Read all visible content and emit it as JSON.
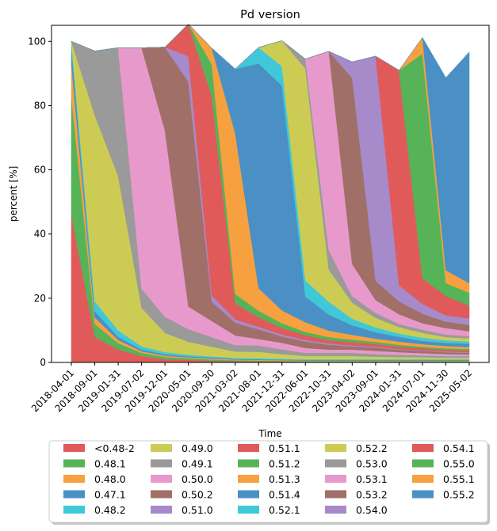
{
  "chart_data": {
    "type": "area",
    "stacked": true,
    "title": "Pd version",
    "xlabel": "Time",
    "ylabel": "percent [%]",
    "ylim": [
      0,
      105
    ],
    "yticks": [
      0,
      20,
      40,
      60,
      80,
      100
    ],
    "x_tick_labels": [
      "2018-04-01",
      "2018-09-01",
      "2019-01-31",
      "2019-07-02",
      "2019-12-01",
      "2020-05-01",
      "2020-09-30",
      "2021-03-02",
      "2021-08-01",
      "2021-12-31",
      "2022-06-01",
      "2022-10-31",
      "2023-04-02",
      "2023-09-01",
      "2024-01-31",
      "2024-07-01",
      "2024-11-30",
      "2025-05-02"
    ],
    "legend_placement": "below",
    "x": [
      0,
      1,
      2,
      3,
      4,
      5,
      6,
      7,
      8,
      9,
      10,
      11,
      12,
      13,
      14,
      15,
      16,
      17
    ],
    "series": [
      {
        "name": "<0.48-2",
        "color": "#e05a5a",
        "values": [
          46,
          8,
          4,
          2,
          1,
          0.8,
          0.5,
          0.4,
          0.3,
          0.3,
          0.2,
          0.2,
          0.2,
          0.2,
          0.2,
          0.2,
          0.2,
          0.2
        ]
      },
      {
        "name": "0.48.1",
        "color": "#57b357",
        "values": [
          37,
          4,
          2,
          1,
          0.7,
          0.5,
          0.4,
          0.3,
          0.3,
          0.2,
          0.2,
          0.2,
          0.2,
          0.2,
          0.2,
          0.2,
          0.2,
          0.2
        ]
      },
      {
        "name": "0.48.0",
        "color": "#f7a040",
        "values": [
          10,
          2,
          1,
          0.5,
          0.4,
          0.3,
          0.3,
          0.2,
          0.2,
          0.2,
          0.2,
          0.2,
          0.2,
          0.2,
          0.2,
          0.2,
          0.2,
          0.2
        ]
      },
      {
        "name": "0.47.1",
        "color": "#4a90c4",
        "values": [
          5,
          2,
          1,
          0.5,
          0.4,
          0.3,
          0.3,
          0.2,
          0.2,
          0.2,
          0.2,
          0.2,
          0.2,
          0.2,
          0.2,
          0.2,
          0.2,
          0.2
        ]
      },
      {
        "name": "0.48.2",
        "color": "#40c8d8",
        "values": [
          2,
          3,
          2,
          1,
          0.7,
          0.5,
          0.4,
          0.3,
          0.3,
          0.2,
          0.2,
          0.2,
          0.2,
          0.2,
          0.2,
          0.2,
          0.2,
          0.2
        ]
      },
      {
        "name": "0.49.0",
        "color": "#cccc55",
        "values": [
          0,
          58,
          48,
          12,
          6,
          4,
          3,
          2,
          2,
          1.5,
          1,
          1,
          1,
          0.8,
          0.7,
          0.6,
          0.5,
          0.5
        ]
      },
      {
        "name": "0.49.1",
        "color": "#9a9a9a",
        "values": [
          0,
          20,
          40,
          6,
          5,
          4,
          3,
          2,
          2,
          1.5,
          1,
          1,
          1,
          0.8,
          0.7,
          0.6,
          0.5,
          0.5
        ]
      },
      {
        "name": "0.50.0",
        "color": "#e899cc",
        "values": [
          0,
          0,
          0,
          75,
          58,
          7,
          5,
          3,
          2,
          2,
          1.5,
          1,
          1,
          1,
          0.8,
          0.7,
          0.6,
          0.5
        ]
      },
      {
        "name": "0.50.2",
        "color": "#a07068",
        "values": [
          0,
          0,
          0,
          0,
          26,
          70,
          6,
          4,
          3,
          2,
          2,
          1.5,
          1,
          1,
          0.8,
          0.7,
          0.6,
          0.5
        ]
      },
      {
        "name": "0.51.0",
        "color": "#a78ac9",
        "values": [
          0,
          0,
          0,
          0,
          0,
          8,
          2,
          1,
          0.8,
          0.6,
          0.5,
          0.4,
          0.3,
          0.3,
          0.2,
          0.2,
          0.2,
          0.2
        ]
      },
      {
        "name": "0.51.1",
        "color": "#e05a5a",
        "values": [
          0,
          0,
          0,
          0,
          0,
          10,
          62,
          5,
          3,
          2,
          1.5,
          1,
          1,
          0.8,
          0.7,
          0.6,
          0.5,
          0.5
        ]
      },
      {
        "name": "0.51.2",
        "color": "#57b357",
        "values": [
          0,
          0,
          0,
          0,
          0,
          0,
          10,
          3,
          2,
          1.5,
          1,
          1,
          0.8,
          0.7,
          0.6,
          0.5,
          0.5,
          0.5
        ]
      },
      {
        "name": "0.51.3",
        "color": "#f7a040",
        "values": [
          0,
          0,
          0,
          0,
          0,
          0,
          5,
          50,
          7,
          4,
          3,
          2,
          1.5,
          1,
          1,
          0.8,
          0.7,
          0.6
        ]
      },
      {
        "name": "0.51.4",
        "color": "#4a90c4",
        "values": [
          0,
          0,
          0,
          0,
          0,
          0,
          0,
          20,
          70,
          70,
          8,
          5,
          3,
          2,
          1.5,
          1,
          1,
          1
        ]
      },
      {
        "name": "0.52.1",
        "color": "#40c8d8",
        "values": [
          0,
          0,
          0,
          0,
          0,
          0,
          0,
          0,
          5,
          6,
          5,
          4,
          2,
          1.5,
          1,
          1,
          0.8,
          0.7
        ]
      },
      {
        "name": "0.52.2",
        "color": "#cccc55",
        "values": [
          0,
          0,
          0,
          0,
          0,
          0,
          0,
          0,
          0,
          8,
          66,
          10,
          5,
          3,
          2,
          1.5,
          1,
          1
        ]
      },
      {
        "name": "0.53.0",
        "color": "#9a9a9a",
        "values": [
          0,
          0,
          0,
          0,
          0,
          0,
          0,
          0,
          0,
          0,
          3,
          6,
          2,
          1.5,
          1,
          1,
          0.8,
          0.7
        ]
      },
      {
        "name": "0.53.1",
        "color": "#e899cc",
        "values": [
          0,
          0,
          0,
          0,
          0,
          0,
          0,
          0,
          0,
          0,
          0,
          62,
          10,
          4,
          3,
          2,
          2,
          1.5
        ]
      },
      {
        "name": "0.53.2",
        "color": "#a07068",
        "values": [
          0,
          0,
          0,
          0,
          0,
          0,
          0,
          0,
          0,
          0,
          0,
          0,
          58,
          6,
          4,
          3,
          2,
          2
        ]
      },
      {
        "name": "0.54.0",
        "color": "#a78ac9",
        "values": [
          0,
          0,
          0,
          0,
          0,
          0,
          0,
          0,
          0,
          0,
          0,
          0,
          5,
          70,
          5,
          3,
          2,
          2
        ]
      },
      {
        "name": "0.54.1",
        "color": "#e05a5a",
        "values": [
          0,
          0,
          0,
          0,
          0,
          0,
          0,
          0,
          0,
          0,
          0,
          0,
          0,
          0,
          67,
          8,
          6,
          4
        ]
      },
      {
        "name": "0.55.0",
        "color": "#57b357",
        "values": [
          0,
          0,
          0,
          0,
          0,
          0,
          0,
          0,
          0,
          0,
          0,
          0,
          0,
          0,
          0,
          70,
          4,
          4
        ]
      },
      {
        "name": "0.55.1",
        "color": "#f7a040",
        "values": [
          0,
          0,
          0,
          0,
          0,
          0,
          0,
          0,
          0,
          0,
          0,
          0,
          0,
          0,
          0,
          5,
          4,
          3
        ]
      },
      {
        "name": "0.55.2",
        "color": "#4a90c4",
        "values": [
          0,
          0,
          0,
          0,
          0,
          0,
          0,
          0,
          0,
          0,
          0,
          0,
          0,
          0,
          0,
          0,
          60,
          72
        ]
      }
    ]
  }
}
